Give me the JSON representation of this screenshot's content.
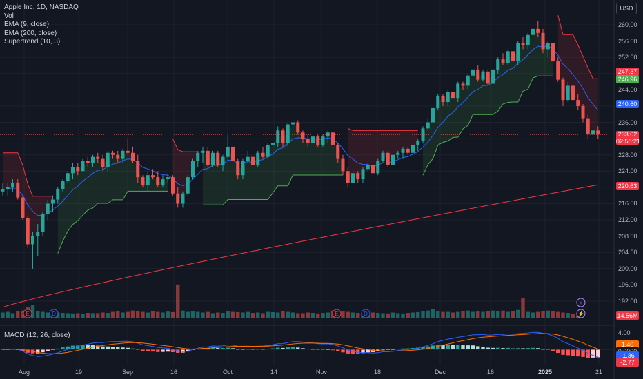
{
  "legend": {
    "symbol": "Apple Inc, 1D, NASDAQ",
    "vol": "Vol",
    "ema9": "EMA (9, close)",
    "ema200": "EMA (200, close)",
    "supertrend": "Supertrend (10, 3)",
    "macd": "MACD (12, 26, close)"
  },
  "currency": "USD",
  "price_axis": {
    "ticks": [
      "260.00",
      "256.00",
      "252.00",
      "248.00",
      "244.00",
      "240.00",
      "236.00",
      "232.00",
      "228.00",
      "224.00",
      "220.00",
      "216.00",
      "212.00",
      "208.00",
      "204.00",
      "200.00",
      "196.00",
      "192.00"
    ],
    "labels": {
      "supertrend_upper": "247.37",
      "ema9": "246.96",
      "ema9_blue": "240.60",
      "last_price": "233.02",
      "countdown": "02:58:21",
      "ema200": "220.63",
      "volume": "14.56M"
    }
  },
  "macd_axis": {
    "tick": "4.00",
    "labels": {
      "macd": "1.40",
      "zero": "0.0000",
      "signal": "-1.36",
      "hist": "-2.77"
    }
  },
  "x_axis": {
    "ticks": [
      {
        "label": "Aug",
        "bold": false
      },
      {
        "label": "19",
        "bold": false
      },
      {
        "label": "Sep",
        "bold": false
      },
      {
        "label": "16",
        "bold": false
      },
      {
        "label": "Oct",
        "bold": false
      },
      {
        "label": "14",
        "bold": false
      },
      {
        "label": "Nov",
        "bold": false
      },
      {
        "label": "18",
        "bold": false
      },
      {
        "label": "Dec",
        "bold": false
      },
      {
        "label": "16",
        "bold": false
      },
      {
        "label": "2025",
        "bold": true
      },
      {
        "label": "21",
        "bold": false
      }
    ]
  },
  "colors": {
    "background": "#131722",
    "up": "#26a69a",
    "down": "#ef5350",
    "ema9": "#2962ff",
    "ema200": "#f23645",
    "macd_line": "#2962ff",
    "signal_line": "#ff6d00",
    "supertrend_up": "#4caf50",
    "supertrend_down": "#f23645"
  },
  "icons": [
    "earnings-marker-icon",
    "dividend-marker-icon",
    "plus-circle-icon",
    "lightning-icon"
  ],
  "chart_data": {
    "type": "candlestick",
    "title": "Apple Inc, 1D, NASDAQ",
    "ylim": [
      189,
      262
    ],
    "candles": [
      [
        219,
        221,
        218,
        219.5
      ],
      [
        219.5,
        221,
        218,
        220
      ],
      [
        220,
        222,
        219,
        221
      ],
      [
        221,
        222,
        217,
        217.5
      ],
      [
        217.5,
        218,
        212,
        212.5
      ],
      [
        212.5,
        213,
        205,
        206
      ],
      [
        206,
        209,
        200,
        208
      ],
      [
        208,
        211,
        203,
        209
      ],
      [
        209,
        214,
        208,
        213.5
      ],
      [
        213.5,
        217,
        212,
        216
      ],
      [
        216,
        218,
        214,
        217
      ],
      [
        217,
        220,
        216,
        219.5
      ],
      [
        219.5,
        222,
        219,
        221.5
      ],
      [
        221.5,
        224,
        221,
        223.5
      ],
      [
        223.5,
        226,
        222,
        225
      ],
      [
        225,
        226,
        223,
        224
      ],
      [
        224,
        227,
        224,
        226.5
      ],
      [
        226.5,
        227.5,
        225,
        226
      ],
      [
        226,
        228,
        225,
        227.5
      ],
      [
        227.5,
        228.5,
        226,
        227
      ],
      [
        227,
        228,
        224,
        225
      ],
      [
        225,
        229,
        224,
        228.5
      ],
      [
        228.5,
        229,
        227,
        228
      ],
      [
        228,
        229,
        226,
        227
      ],
      [
        227,
        229.5,
        226,
        229
      ],
      [
        229,
        232,
        228,
        228.5
      ],
      [
        228.5,
        230,
        226,
        226.5
      ],
      [
        226.5,
        228,
        221,
        222.5
      ],
      [
        222.5,
        223,
        220,
        220.5
      ],
      [
        220.5,
        224,
        219,
        223
      ],
      [
        223,
        224.5,
        222,
        222.5
      ],
      [
        222.5,
        224,
        220,
        220.5
      ],
      [
        220.5,
        223,
        220,
        222
      ],
      [
        222,
        223.5,
        221,
        222.5
      ],
      [
        222.5,
        223,
        218,
        218.5
      ],
      [
        218.5,
        220,
        215,
        216
      ],
      [
        216,
        219,
        215,
        218.5
      ],
      [
        218.5,
        223,
        218,
        222.5
      ],
      [
        222.5,
        227,
        222,
        226.5
      ],
      [
        226.5,
        229,
        225,
        228.5
      ],
      [
        228.5,
        230,
        226,
        229
      ],
      [
        229,
        230,
        225,
        225.5
      ],
      [
        225.5,
        229,
        225,
        228.5
      ],
      [
        228.5,
        229,
        225,
        225.5
      ],
      [
        225.5,
        228,
        224,
        227.5
      ],
      [
        227.5,
        233,
        227,
        230
      ],
      [
        230,
        230.5,
        226,
        226.5
      ],
      [
        226.5,
        227,
        222,
        223
      ],
      [
        223,
        227,
        222,
        226.5
      ],
      [
        226.5,
        229,
        226,
        227.5
      ],
      [
        227.5,
        228,
        225,
        225.5
      ],
      [
        225.5,
        229,
        225,
        228.5
      ],
      [
        228.5,
        230,
        227,
        227.5
      ],
      [
        227.5,
        231,
        227,
        230.5
      ],
      [
        230.5,
        232,
        229,
        231
      ],
      [
        231,
        235,
        230,
        234
      ],
      [
        234,
        234.5,
        230,
        231
      ],
      [
        231,
        236,
        230,
        235.5
      ],
      [
        235.5,
        237,
        234,
        236
      ],
      [
        236,
        236.5,
        233,
        233.5
      ],
      [
        233.5,
        234,
        231,
        232
      ],
      [
        232,
        233,
        230,
        231
      ],
      [
        231,
        233,
        230,
        232.5
      ],
      [
        232.5,
        233,
        230,
        230.5
      ],
      [
        230.5,
        233,
        230,
        232.5
      ],
      [
        232.5,
        234,
        231,
        233.5
      ],
      [
        233.5,
        234,
        230,
        230.5
      ],
      [
        230.5,
        231,
        226,
        227
      ],
      [
        227,
        228,
        223,
        224
      ],
      [
        224,
        225,
        220,
        221
      ],
      [
        221,
        224,
        220,
        223.5
      ],
      [
        223.5,
        224,
        221,
        222
      ],
      [
        222,
        225,
        221,
        224.5
      ],
      [
        224.5,
        226,
        224,
        225.5
      ],
      [
        225.5,
        226,
        223,
        223.5
      ],
      [
        223.5,
        227,
        223,
        226.5
      ],
      [
        226.5,
        229,
        226,
        228.5
      ],
      [
        228.5,
        229,
        225,
        225.5
      ],
      [
        225.5,
        229,
        225,
        228
      ],
      [
        228,
        229,
        227,
        228.5
      ],
      [
        228.5,
        230,
        227,
        229.5
      ],
      [
        229.5,
        230,
        228,
        228.5
      ],
      [
        228.5,
        231,
        228,
        230.5
      ],
      [
        230.5,
        232,
        229,
        231.5
      ],
      [
        231.5,
        235,
        231,
        234.5
      ],
      [
        234.5,
        237,
        234,
        236
      ],
      [
        236,
        240,
        235,
        239.5
      ],
      [
        239.5,
        243,
        239,
        242.5
      ],
      [
        242.5,
        243,
        240,
        241
      ],
      [
        241,
        244,
        240,
        243.5
      ],
      [
        243.5,
        245,
        241,
        242
      ],
      [
        242,
        246,
        241,
        245.5
      ],
      [
        245.5,
        246,
        244,
        245
      ],
      [
        245,
        248,
        244,
        247.5
      ],
      [
        247.5,
        250,
        247,
        249
      ],
      [
        249,
        250,
        246,
        246.5
      ],
      [
        246.5,
        249,
        246,
        248.5
      ],
      [
        248.5,
        249,
        245,
        245.5
      ],
      [
        245.5,
        250,
        245,
        249
      ],
      [
        249,
        252,
        248,
        251.5
      ],
      [
        251.5,
        253,
        250,
        250.5
      ],
      [
        250.5,
        254,
        250,
        253.5
      ],
      [
        253.5,
        255,
        250,
        251
      ],
      [
        251,
        256,
        250,
        255.5
      ],
      [
        255.5,
        257,
        254,
        255
      ],
      [
        255,
        258,
        254,
        257.5
      ],
      [
        257.5,
        260,
        257,
        259
      ],
      [
        259,
        261,
        257,
        258
      ],
      [
        258,
        259,
        253,
        254
      ],
      [
        254,
        256,
        252,
        255.5
      ],
      [
        255.5,
        256,
        250,
        251
      ],
      [
        251,
        252,
        246,
        246.5
      ],
      [
        246.5,
        247,
        240,
        241.5
      ],
      [
        241.5,
        246,
        241,
        245
      ],
      [
        245,
        246,
        241,
        241.5
      ],
      [
        241.5,
        243,
        239,
        240
      ],
      [
        240,
        240.5,
        236,
        237
      ],
      [
        237,
        238,
        232,
        233
      ],
      [
        233,
        235,
        229,
        234
      ],
      [
        234,
        235,
        232,
        233.02
      ]
    ],
    "volume_relative": [
      0.45,
      0.5,
      0.4,
      0.55,
      0.6,
      0.9,
      1.0,
      0.55,
      0.5,
      0.45,
      0.4,
      0.45,
      0.42,
      0.4,
      0.38,
      0.4,
      0.35,
      0.42,
      0.4,
      0.4,
      0.45,
      0.42,
      0.5,
      0.55,
      0.45,
      0.5,
      0.6,
      0.55,
      0.5,
      0.45,
      0.55,
      0.5,
      0.45,
      0.52,
      0.48,
      2.6,
      0.6,
      0.5,
      0.55,
      0.5,
      0.45,
      0.5,
      0.4,
      0.45,
      0.42,
      0.55,
      0.5,
      0.48,
      0.45,
      0.5,
      0.42,
      0.45,
      0.4,
      0.5,
      0.48,
      0.45,
      0.55,
      0.5,
      0.45,
      0.4,
      0.4,
      0.45,
      0.42,
      0.38,
      0.42,
      0.45,
      0.6,
      0.5,
      0.55,
      0.5,
      0.45,
      0.42,
      0.4,
      0.38,
      0.45,
      0.42,
      0.4,
      0.38,
      0.45,
      0.4,
      0.38,
      0.42,
      0.45,
      0.48,
      0.55,
      0.6,
      0.7,
      0.55,
      0.5,
      0.5,
      0.45,
      0.5,
      0.55,
      0.6,
      0.5,
      0.55,
      0.5,
      0.55,
      0.6,
      0.55,
      0.6,
      0.5,
      0.55,
      0.65,
      1.55,
      0.5,
      0.45,
      0.5,
      0.55,
      0.6,
      0.55,
      0.5,
      0.45,
      0.42,
      0.35,
      0.25
    ],
    "volume_ylim_note": "scaled relative to median volume",
    "ema200_range": [
      190.5,
      220.63
    ],
    "last_price": 233.02
  }
}
